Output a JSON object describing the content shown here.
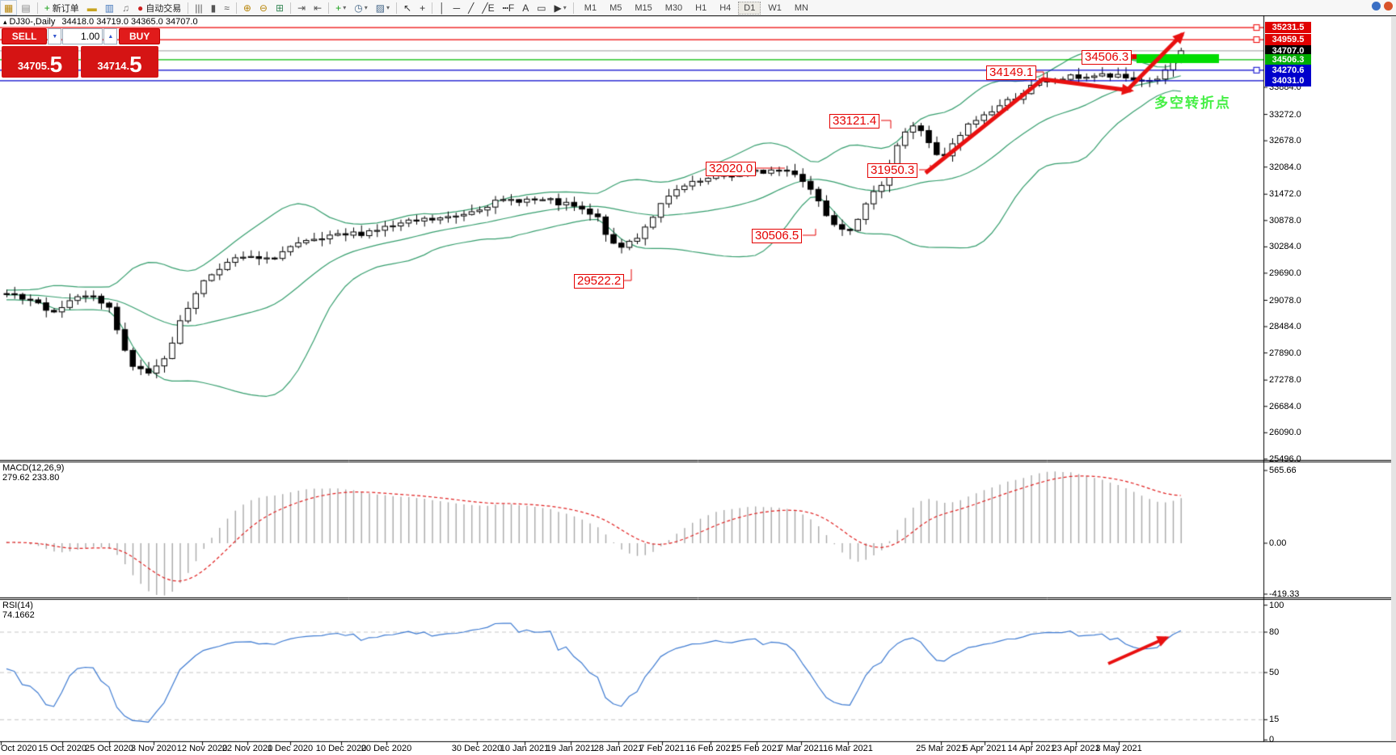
{
  "window": {
    "right_icons": [
      {
        "name": "connection-status-icon",
        "glyph": "●",
        "color": "#3a6fc4"
      },
      {
        "name": "notification-icon",
        "glyph": "●",
        "color": "#d9542b"
      }
    ]
  },
  "toolbar": {
    "items": [
      {
        "name": "new-chart-icon",
        "glyph": "▦",
        "color": "#b8860b"
      },
      {
        "name": "chart-profiles-icon",
        "glyph": "▤",
        "color": "#888888"
      },
      {
        "type": "sep"
      },
      {
        "name": "new-order-button",
        "glyph": "+",
        "color": "#18a018",
        "label": "新订单"
      },
      {
        "name": "market-watch-icon",
        "glyph": "▬",
        "color": "#c8a420"
      },
      {
        "name": "data-window-icon",
        "glyph": "▥",
        "color": "#4477bb"
      },
      {
        "name": "alerts-icon",
        "glyph": "♫",
        "color": "#777777"
      },
      {
        "name": "auto-trading-button",
        "glyph": "●",
        "color": "#cc2020",
        "label": "自动交易"
      },
      {
        "type": "sep"
      },
      {
        "name": "bar-chart-mode-icon",
        "glyph": "|||",
        "color": "#555555"
      },
      {
        "name": "candlestick-mode-icon",
        "glyph": "▮",
        "color": "#555555"
      },
      {
        "name": "line-chart-mode-icon",
        "glyph": "≈",
        "color": "#555555"
      },
      {
        "type": "sep"
      },
      {
        "name": "zoom-in-icon",
        "glyph": "⊕",
        "color": "#b8860b"
      },
      {
        "name": "zoom-out-icon",
        "glyph": "⊖",
        "color": "#b8860b"
      },
      {
        "name": "tile-windows-icon",
        "glyph": "⊞",
        "color": "#3a8a5a"
      },
      {
        "type": "sep"
      },
      {
        "name": "auto-scroll-icon",
        "glyph": "⇥",
        "color": "#555555"
      },
      {
        "name": "chart-shift-icon",
        "glyph": "⇤",
        "color": "#555555"
      },
      {
        "type": "sep"
      },
      {
        "name": "indicators-menu",
        "glyph": "+",
        "color": "#18a018",
        "dropdown": true
      },
      {
        "name": "periods-menu",
        "glyph": "◷",
        "color": "#446688",
        "dropdown": true
      },
      {
        "name": "templates-menu",
        "glyph": "▨",
        "color": "#446688",
        "dropdown": true
      },
      {
        "type": "sep"
      },
      {
        "name": "cursor-tool",
        "glyph": "↖",
        "color": "#333333"
      },
      {
        "name": "crosshair-tool",
        "glyph": "+",
        "color": "#333333"
      },
      {
        "type": "sep"
      },
      {
        "name": "vertical-line-tool",
        "glyph": "│",
        "color": "#333333"
      },
      {
        "name": "horizontal-line-tool",
        "glyph": "─",
        "color": "#333333"
      },
      {
        "name": "trendline-tool",
        "glyph": "╱",
        "color": "#333333"
      },
      {
        "name": "channel-tool",
        "glyph": "╱E",
        "color": "#333333"
      },
      {
        "name": "fibonacci-tool",
        "glyph": "┅F",
        "color": "#333333"
      },
      {
        "name": "text-tool",
        "glyph": "A",
        "color": "#333333"
      },
      {
        "name": "label-tool",
        "glyph": "▭",
        "color": "#333333"
      },
      {
        "name": "arrows-tool",
        "glyph": "▶",
        "color": "#333333",
        "dropdown": true
      },
      {
        "type": "sep"
      }
    ],
    "timeframes": [
      "M1",
      "M5",
      "M15",
      "M30",
      "H1",
      "H4",
      "D1",
      "W1",
      "MN"
    ],
    "active_timeframe": "D1"
  },
  "chart": {
    "title": {
      "collapse_icon": "▴",
      "symbol_period": "DJ30-,Daily",
      "ohlc": "34418.0 34719.0 34365.0 34707.0"
    },
    "trade_panel": {
      "sell_label": "SELL",
      "buy_label": "BUY",
      "volume": "1.00",
      "spin_down_icon": "▼",
      "spin_up_icon": "▲",
      "sell_price_main": "34705.",
      "sell_price_big": "5",
      "buy_price_main": "34714.",
      "buy_price_big": "5"
    },
    "hlines": [
      {
        "price": "35231.5",
        "value": 35231.5,
        "color": "#ee0000",
        "bg": "#e00000",
        "handle": true
      },
      {
        "price": "34959.5",
        "value": 34959.5,
        "color": "#ee0000",
        "bg": "#e00000",
        "handle": true
      },
      {
        "price": "34707.0",
        "value": 34707.0,
        "color": "#9a9a9a",
        "bg": "#000000",
        "handle": false
      },
      {
        "price": "34506.3",
        "value": 34506.3,
        "color": "#00bb00",
        "bg": "#00ad00",
        "handle": false
      },
      {
        "price": "34270.6",
        "value": 34270.6,
        "color": "#0000cc",
        "bg": "#0000cc",
        "handle": true
      },
      {
        "price": "34031.0",
        "value": 34031.0,
        "color": "#0000cc",
        "bg": "#0000cc",
        "handle": false
      }
    ],
    "y_axis_ticks": [
      33884.0,
      33272.0,
      32678.0,
      32084.0,
      31472.0,
      30878.0,
      30284.0,
      29690.0,
      29078.0,
      28484.0,
      27890.0,
      27278.0,
      26684.0,
      26090.0,
      25496.0
    ],
    "callouts": [
      "29522.2",
      "30506.5",
      "32020.0",
      "31950.3",
      "33121.4",
      "34149.1",
      "34506.3"
    ],
    "annotation_text": "多空转折点",
    "x_axis_labels": [
      "Oct 2020",
      "15 Oct 2020",
      "25 Oct 2020",
      "3 Nov 2020",
      "12 Nov 2020",
      "22 Nov 2020",
      "1 Dec 2020",
      "10 Dec 2020",
      "20 Dec 2020",
      "30 Dec 2020",
      "10 Jan 2021",
      "19 Jan 2021",
      "28 Jan 2021",
      "7 Feb 2021",
      "16 Feb 2021",
      "25 Feb 2021",
      "7 Mar 2021",
      "16 Mar 2021",
      "25 Mar 2021",
      "5 Apr 2021",
      "14 Apr 2021",
      "23 Apr 2021",
      "3 May 2021"
    ]
  },
  "macd": {
    "label": "MACD(12,26,9) 279.62 233.80",
    "scale": [
      {
        "text": "565.66",
        "value": 565.66
      },
      {
        "text": "0.00",
        "value": 0
      },
      {
        "text": "-419.33",
        "value": -419.33
      }
    ]
  },
  "rsi": {
    "label": "RSI(14) 74.1662",
    "scale": [
      {
        "text": "100",
        "value": 100
      },
      {
        "text": "80",
        "value": 80
      },
      {
        "text": "50",
        "value": 50
      },
      {
        "text": "15",
        "value": 15
      },
      {
        "text": "0",
        "value": 0
      }
    ]
  },
  "chart_data": {
    "type": "candlestick",
    "symbol": "DJ30-",
    "period": "Daily",
    "ohlc_header": {
      "open": 34418.0,
      "high": 34719.0,
      "low": 34365.0,
      "close": 34707.0
    },
    "bid": 34705.5,
    "ask": 34714.5,
    "volume": 1.0,
    "indicators": [
      {
        "name": "Bollinger Bands",
        "lines": 3,
        "color": "#369e6e"
      },
      {
        "name": "MACD",
        "params": "12,26,9",
        "current": [
          279.62,
          233.8
        ],
        "scale_max": 565.66,
        "scale_min": -419.33
      },
      {
        "name": "RSI",
        "params": "14",
        "current": 74.1662,
        "levels": [
          80,
          50,
          15
        ]
      }
    ],
    "horizontal_levels": [
      {
        "price": 35231.5,
        "color": "red"
      },
      {
        "price": 34959.5,
        "color": "red"
      },
      {
        "price": 34707.0,
        "color": "black",
        "note": "current price"
      },
      {
        "price": 34506.3,
        "color": "green"
      },
      {
        "price": 34270.6,
        "color": "blue"
      },
      {
        "price": 34031.0,
        "color": "blue"
      }
    ],
    "swing_labels": [
      29522.2,
      30506.5,
      32020.0,
      31950.3,
      33121.4,
      34149.1,
      34506.3
    ],
    "annotation_text": "多空转折点",
    "price_anchors": [
      [
        8,
        29200
      ],
      [
        70,
        28840
      ],
      [
        100,
        29290
      ],
      [
        135,
        28930
      ],
      [
        160,
        27580
      ],
      [
        185,
        27450
      ],
      [
        205,
        27850
      ],
      [
        225,
        28660
      ],
      [
        245,
        29380
      ],
      [
        270,
        29830
      ],
      [
        300,
        30045
      ],
      [
        330,
        29975
      ],
      [
        360,
        30280
      ],
      [
        400,
        30460
      ],
      [
        440,
        30585
      ],
      [
        480,
        30730
      ],
      [
        520,
        30875
      ],
      [
        560,
        30945
      ],
      [
        600,
        31235
      ],
      [
        640,
        31360
      ],
      [
        680,
        31305
      ],
      [
        710,
        31180
      ],
      [
        740,
        30910
      ],
      [
        762,
        30190
      ],
      [
        790,
        30550
      ],
      [
        815,
        31180
      ],
      [
        840,
        31595
      ],
      [
        870,
        31775
      ],
      [
        900,
        31900
      ],
      [
        930,
        31955
      ],
      [
        960,
        32025
      ],
      [
        985,
        31955
      ],
      [
        1005,
        31540
      ],
      [
        1025,
        30945
      ],
      [
        1048,
        30640
      ],
      [
        1070,
        31180
      ],
      [
        1090,
        31720
      ],
      [
        1105,
        32440
      ],
      [
        1120,
        32890
      ],
      [
        1135,
        33035
      ],
      [
        1150,
        32620
      ],
      [
        1163,
        32170
      ],
      [
        1180,
        32620
      ],
      [
        1200,
        33070
      ],
      [
        1225,
        33340
      ],
      [
        1250,
        33610
      ],
      [
        1275,
        33880
      ],
      [
        1300,
        34060
      ],
      [
        1330,
        34115
      ],
      [
        1360,
        34150
      ],
      [
        1390,
        34095
      ],
      [
        1415,
        34025
      ],
      [
        1430,
        34050
      ],
      [
        1440,
        34230
      ],
      [
        1450,
        34480
      ],
      [
        1458,
        34707
      ]
    ]
  }
}
